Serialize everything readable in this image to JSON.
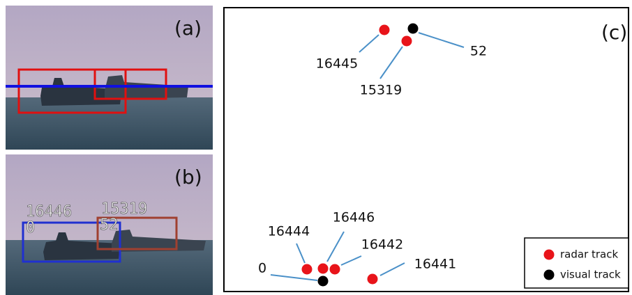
{
  "panels": {
    "a": {
      "label": "(a)"
    },
    "b": {
      "label": "(b)",
      "boxes": [
        {
          "id": "16446",
          "track": "0"
        },
        {
          "id": "15319",
          "track": "52"
        }
      ]
    },
    "c": {
      "label": "(c)",
      "points": [
        {
          "label": "16445",
          "kind": "radar"
        },
        {
          "label": "52",
          "kind": "visual"
        },
        {
          "label": "15319",
          "kind": "radar"
        },
        {
          "label": "16444",
          "kind": "radar"
        },
        {
          "label": "16446",
          "kind": "radar"
        },
        {
          "label": "16442",
          "kind": "radar"
        },
        {
          "label": "0",
          "kind": "visual"
        },
        {
          "label": "16441",
          "kind": "radar"
        }
      ],
      "legend": [
        {
          "kind": "radar",
          "label": "radar track",
          "color": "#e8141a"
        },
        {
          "kind": "visual",
          "label": "visual track",
          "color": "#000000"
        }
      ]
    }
  }
}
